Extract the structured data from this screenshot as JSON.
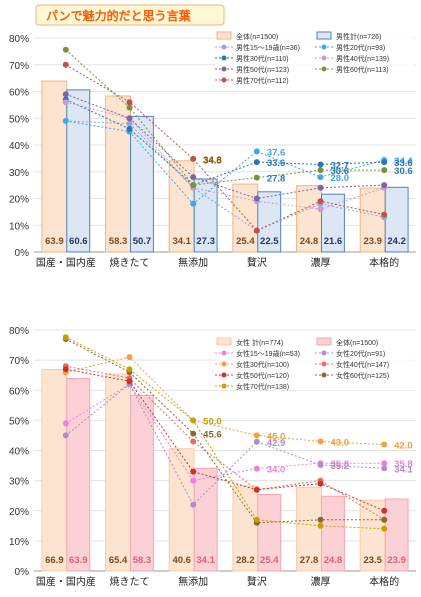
{
  "title": "パンで魅力的だと思う言葉",
  "chart_data": [
    {
      "type": "bar",
      "categories": [
        "国産・国内産",
        "焼きたて",
        "無添加",
        "贅沢",
        "濃厚",
        "本格的"
      ],
      "ylim": [
        0,
        80
      ],
      "yticks": [
        "0%",
        "10%",
        "20%",
        "30%",
        "40%",
        "50%",
        "60%",
        "70%",
        "80%"
      ],
      "bar_series": [
        {
          "name": "全体(n=1500)",
          "values": [
            63.9,
            58.3,
            34.1,
            25.4,
            24.8,
            23.9
          ],
          "fill": "#fce4d0",
          "stroke": "#f3b27a",
          "label_color": "#7a4a1c"
        },
        {
          "name": "男性計(n=726)",
          "values": [
            60.6,
            50.7,
            27.3,
            22.5,
            21.6,
            24.2
          ],
          "fill": "#dce6f4",
          "stroke": "#4f81bd",
          "label_color": "#1f3864"
        }
      ],
      "line_series": [
        {
          "name": "男性15～19歳(n=36)",
          "values": [
            49.0,
            48.0,
            24.0,
            8.0,
            18.0,
            13.0
          ],
          "color": "#8fa9d6"
        },
        {
          "name": "男性20代(n=93)",
          "values": [
            49.0,
            45.0,
            18.0,
            37.6,
            28.0,
            34.4
          ],
          "color": "#3fa6f0"
        },
        {
          "name": "男性30代(n=110)",
          "values": [
            57.0,
            46.0,
            25.0,
            33.6,
            32.7,
            33.6
          ],
          "color": "#2e75b6"
        },
        {
          "name": "男性40代(n=139)",
          "values": [
            56.0,
            50.0,
            24.0,
            19.0,
            16.0,
            24.0
          ],
          "color": "#c99ad6"
        },
        {
          "name": "男性50代(n=123)",
          "values": [
            59.0,
            50.0,
            28.0,
            20.0,
            24.0,
            25.0
          ],
          "color": "#8064a2"
        },
        {
          "name": "男性60代(n=113)",
          "values": [
            75.6,
            54.0,
            25.0,
            27.8,
            30.6,
            30.6
          ],
          "color": "#77933c"
        },
        {
          "name": "男性70代(n=112)",
          "values": [
            70.0,
            56.0,
            34.8,
            8.0,
            19.0,
            14.0
          ],
          "color": "#c0504d"
        }
      ],
      "annotations": [
        {
          "cat": 2,
          "value": 34.8,
          "text": "34.8",
          "color": "#8a5a00"
        },
        {
          "cat": 2,
          "value": 34.5,
          "text": "34.5",
          "color": "#8a5a00"
        },
        {
          "cat": 3,
          "value": 37.6,
          "text": "37.6",
          "color": "#3fa6f0"
        },
        {
          "cat": 3,
          "value": 33.6,
          "text": "33.6",
          "color": "#2e75b6"
        },
        {
          "cat": 3,
          "value": 27.8,
          "text": "27.8",
          "color": "#2e75b6"
        },
        {
          "cat": 4,
          "value": 32.7,
          "text": "32.7",
          "color": "#2e75b6"
        },
        {
          "cat": 4,
          "value": 30.6,
          "text": "30.6",
          "color": "#2e75b6"
        },
        {
          "cat": 4,
          "value": 28.0,
          "text": "28.0",
          "color": "#3fa6f0"
        },
        {
          "cat": 5,
          "value": 34.4,
          "text": "34.4",
          "color": "#3fa6f0"
        },
        {
          "cat": 5,
          "value": 33.6,
          "text": "33.6",
          "color": "#2e75b6"
        },
        {
          "cat": 5,
          "value": 30.6,
          "text": "30.6",
          "color": "#2e75b6"
        }
      ]
    },
    {
      "type": "bar",
      "categories": [
        "国産・国内産",
        "焼きたて",
        "無添加",
        "贅沢",
        "濃厚",
        "本格的"
      ],
      "ylim": [
        0,
        80
      ],
      "yticks": [
        "0%",
        "10%",
        "20%",
        "30%",
        "40%",
        "50%",
        "60%",
        "70%",
        "80%"
      ],
      "bar_series": [
        {
          "name": "女性 計(n=774)",
          "values": [
            66.9,
            65.4,
            40.6,
            28.2,
            27.8,
            23.5
          ],
          "fill": "#fce4d0",
          "stroke": "#f8cba6",
          "label_color": "#7a4a1c"
        },
        {
          "name": "全体(n=1500)",
          "values": [
            63.9,
            58.3,
            34.1,
            25.4,
            24.8,
            23.9
          ],
          "fill": "#fbd1d6",
          "stroke": "#f5a6b0",
          "label_color": "#e06070"
        }
      ],
      "line_series": [
        {
          "name": "女性15～19歳(n=53)",
          "values": [
            49.0,
            62.0,
            30.0,
            34.0,
            35.8,
            35.8
          ],
          "color": "#f27de0"
        },
        {
          "name": "女性20代(n=91)",
          "values": [
            45.0,
            62.0,
            22.0,
            42.9,
            35.2,
            34.1
          ],
          "color": "#b08cc8"
        },
        {
          "name": "女性30代(n=100)",
          "values": [
            66.0,
            71.0,
            50.0,
            45.0,
            43.0,
            42.0
          ],
          "color": "#f4a03c"
        },
        {
          "name": "女性40代(n=147)",
          "values": [
            68.0,
            64.0,
            43.0,
            27.0,
            30.0,
            17.0
          ],
          "color": "#f26a5a"
        },
        {
          "name": "女性50代(n=120)",
          "values": [
            67.0,
            63.0,
            33.0,
            27.0,
            29.0,
            20.0
          ],
          "color": "#d0302a"
        },
        {
          "name": "女性60代(n=125)",
          "values": [
            77.0,
            66.0,
            45.6,
            16.0,
            17.0,
            17.0
          ],
          "color": "#8a6a30"
        },
        {
          "name": "女性70代(n=138)",
          "values": [
            77.6,
            67.0,
            50.0,
            17.0,
            15.0,
            14.0
          ],
          "color": "#c8a000"
        }
      ],
      "annotations": [
        {
          "cat": 2,
          "value": 50.0,
          "text": "50.0",
          "color": "#c8a000"
        },
        {
          "cat": 2,
          "value": 45.6,
          "text": "45.6",
          "color": "#8a6a30"
        },
        {
          "cat": 3,
          "value": 45.0,
          "text": "45.0",
          "color": "#f4a03c"
        },
        {
          "cat": 3,
          "value": 42.9,
          "text": "42.9",
          "color": "#b08cc8"
        },
        {
          "cat": 3,
          "value": 34.0,
          "text": "34.0",
          "color": "#f27de0"
        },
        {
          "cat": 4,
          "value": 43.0,
          "text": "43.0",
          "color": "#f4a03c"
        },
        {
          "cat": 4,
          "value": 35.8,
          "text": "35.8",
          "color": "#f27de0"
        },
        {
          "cat": 4,
          "value": 35.2,
          "text": "35.2",
          "color": "#b08cc8"
        },
        {
          "cat": 5,
          "value": 42.0,
          "text": "42.0",
          "color": "#f4a03c"
        },
        {
          "cat": 5,
          "value": 35.8,
          "text": "35.8",
          "color": "#f27de0"
        },
        {
          "cat": 5,
          "value": 34.1,
          "text": "34.1",
          "color": "#b08cc8"
        }
      ]
    }
  ]
}
